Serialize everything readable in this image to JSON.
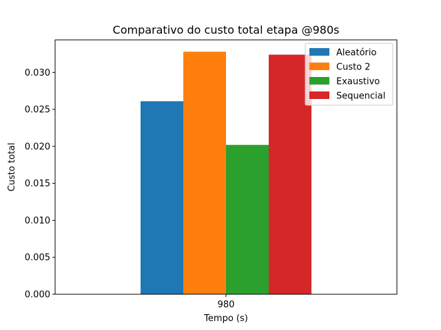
{
  "chart_data": {
    "type": "bar",
    "title": "Comparativo do custo total etapa @980s",
    "xlabel": "Tempo (s)",
    "ylabel": "Custo total",
    "categories": [
      "980"
    ],
    "series": [
      {
        "name": "Aleatório",
        "values": [
          0.0261
        ],
        "color": "#1f77b4"
      },
      {
        "name": "Custo 2",
        "values": [
          0.0328
        ],
        "color": "#ff7f0e"
      },
      {
        "name": "Exaustivo",
        "values": [
          0.0202
        ],
        "color": "#2ca02c"
      },
      {
        "name": "Sequencial",
        "values": [
          0.0324
        ],
        "color": "#d62728"
      }
    ],
    "ylim": [
      0,
      0.0344
    ],
    "yticks": [
      "0.000",
      "0.005",
      "0.010",
      "0.015",
      "0.020",
      "0.025",
      "0.030"
    ],
    "grid": false,
    "legend_position": "top-right"
  }
}
